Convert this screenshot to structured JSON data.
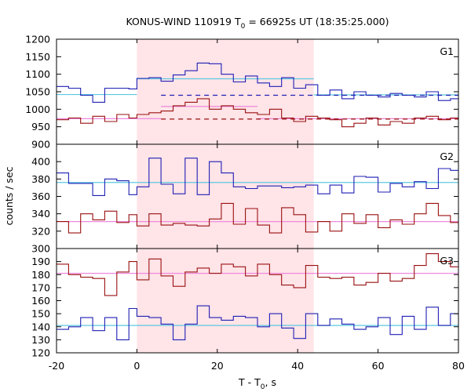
{
  "chart_data": {
    "type": "line",
    "title_main": "KONUS-WIND 110919 T",
    "title_sub": "0",
    "title_rest": " = 66925s UT (18:35:25.000)",
    "xlabel_main": "T - T",
    "xlabel_sub": "0",
    "xlabel_rest": ", s",
    "ylabel": "counts / sec",
    "xlim": [
      -20,
      80
    ],
    "x_ticks": [
      -20,
      0,
      20,
      40,
      60,
      80
    ],
    "highlight_interval": [
      0,
      44
    ],
    "colors": {
      "series_blue": "#1f1fb4",
      "series_red": "#9a1010",
      "level_cyan": "#5cc8e0",
      "level_pink": "#ee88dd",
      "highlight": "#ffe4e8"
    },
    "panels": [
      {
        "label": "G1",
        "ylim": [
          900,
          1200
        ],
        "y_ticks": [
          900,
          950,
          1000,
          1050,
          1100,
          1150,
          1200
        ],
        "series": [
          {
            "color_key": "series_blue",
            "edges": [
              -20,
              -17,
              -14,
              -11,
              -8,
              -5,
              -2,
              0,
              3,
              6,
              9,
              12,
              15,
              18,
              21,
              24,
              27,
              30,
              33,
              36,
              39,
              42,
              45,
              48,
              51,
              54,
              57,
              60,
              63,
              66,
              69,
              72,
              75,
              78,
              80
            ],
            "values": [
              1065,
              1060,
              1040,
              1020,
              1060,
              1060,
              1058,
              1088,
              1090,
              1080,
              1098,
              1110,
              1132,
              1130,
              1100,
              1078,
              1095,
              1075,
              1065,
              1090,
              1060,
              1070,
              1040,
              1055,
              1030,
              1050,
              1040,
              1035,
              1045,
              1040,
              1035,
              1050,
              1025,
              1030
            ]
          },
          {
            "color_key": "series_red",
            "edges": [
              -20,
              -17,
              -14,
              -11,
              -8,
              -5,
              -2,
              0,
              3,
              6,
              9,
              12,
              15,
              18,
              21,
              24,
              27,
              30,
              33,
              36,
              39,
              42,
              45,
              48,
              51,
              54,
              57,
              60,
              63,
              66,
              69,
              72,
              75,
              78,
              80
            ],
            "values": [
              970,
              975,
              960,
              980,
              965,
              985,
              975,
              985,
              990,
              995,
              1010,
              1020,
              1030,
              1000,
              1010,
              1000,
              990,
              985,
              1000,
              975,
              965,
              980,
              975,
              970,
              950,
              960,
              975,
              955,
              965,
              960,
              975,
              980,
              970,
              975
            ]
          }
        ],
        "levels": [
          {
            "color_key": "level_cyan",
            "from": -20,
            "to": 0,
            "y": 1042,
            "dash": false
          },
          {
            "color_key": "level_cyan",
            "from": 0,
            "to": 44,
            "y": 1087,
            "dash": false
          },
          {
            "color_key": "level_cyan",
            "from": 44,
            "to": 80,
            "y": 1041,
            "dash": false
          },
          {
            "color_key": "level_pink",
            "from": -20,
            "to": 6,
            "y": 973,
            "dash": false
          },
          {
            "color_key": "level_pink",
            "from": 6,
            "to": 30,
            "y": 1008,
            "dash": false
          },
          {
            "color_key": "level_pink",
            "from": 30,
            "to": 80,
            "y": 973,
            "dash": false
          }
        ],
        "dashed_levels": [
          {
            "color_key": "series_blue",
            "from": 6,
            "to": 80,
            "y": 1040
          },
          {
            "color_key": "series_red",
            "from": 6,
            "to": 80,
            "y": 972
          }
        ]
      },
      {
        "label": "G2",
        "ylim": [
          300,
          420
        ],
        "y_ticks": [
          300,
          320,
          340,
          360,
          380,
          400
        ],
        "series": [
          {
            "color_key": "series_blue",
            "edges": [
              -20,
              -17,
              -14,
              -11,
              -8,
              -5,
              -2,
              0,
              3,
              6,
              9,
              12,
              15,
              18,
              21,
              24,
              27,
              30,
              33,
              36,
              39,
              42,
              45,
              48,
              51,
              54,
              57,
              60,
              63,
              66,
              69,
              72,
              75,
              78,
              80
            ],
            "values": [
              387,
              375,
              375,
              361,
              380,
              378,
              362,
              371,
              404,
              374,
              363,
              404,
              362,
              400,
              387,
              371,
              369,
              372,
              372,
              370,
              371,
              373,
              363,
              373,
              364,
              383,
              382,
              365,
              375,
              371,
              377,
              369,
              392,
              390
            ]
          },
          {
            "color_key": "series_red",
            "edges": [
              -20,
              -17,
              -14,
              -11,
              -8,
              -5,
              -2,
              0,
              3,
              6,
              9,
              12,
              15,
              18,
              21,
              24,
              27,
              30,
              33,
              36,
              39,
              42,
              45,
              48,
              51,
              54,
              57,
              60,
              63,
              66,
              69,
              72,
              75,
              78,
              80
            ],
            "values": [
              331,
              318,
              340,
              333,
              343,
              330,
              339,
              326,
              340,
              327,
              329,
              327,
              326,
              334,
              352,
              328,
              346,
              327,
              318,
              347,
              339,
              319,
              331,
              320,
              340,
              329,
              339,
              324,
              333,
              328,
              340,
              352,
              338,
              330
            ]
          }
        ],
        "levels": [
          {
            "color_key": "level_cyan",
            "from": -20,
            "to": 80,
            "y": 376,
            "dash": false
          },
          {
            "color_key": "level_pink",
            "from": -20,
            "to": 80,
            "y": 331,
            "dash": false
          }
        ],
        "dashed_levels": []
      },
      {
        "label": "G3",
        "ylim": [
          120,
          200
        ],
        "y_ticks": [
          120,
          130,
          140,
          150,
          160,
          170,
          180,
          190
        ],
        "series": [
          {
            "color_key": "series_red",
            "edges": [
              -20,
              -17,
              -14,
              -11,
              -8,
              -5,
              -2,
              0,
              3,
              6,
              9,
              12,
              15,
              18,
              21,
              24,
              27,
              30,
              33,
              36,
              39,
              42,
              45,
              48,
              51,
              54,
              57,
              60,
              63,
              66,
              69,
              72,
              75,
              78,
              80
            ],
            "values": [
              188,
              180,
              178,
              177,
              164,
              182,
              190,
              176,
              192,
              179,
              171,
              182,
              185,
              181,
              188,
              186,
              179,
              188,
              180,
              172,
              170,
              187,
              178,
              177,
              178,
              172,
              174,
              181,
              175,
              177,
              187,
              196,
              190,
              186
            ]
          },
          {
            "color_key": "series_blue",
            "edges": [
              -20,
              -17,
              -14,
              -11,
              -8,
              -5,
              -2,
              0,
              3,
              6,
              9,
              12,
              15,
              18,
              21,
              24,
              27,
              30,
              33,
              36,
              39,
              42,
              45,
              48,
              51,
              54,
              57,
              60,
              63,
              66,
              69,
              72,
              75,
              78,
              80
            ],
            "values": [
              138,
              140,
              147,
              137,
              147,
              130,
              154,
              148,
              147,
              142,
              130,
              142,
              156,
              147,
              145,
              148,
              147,
              140,
              150,
              139,
              131,
              150,
              141,
              146,
              142,
              138,
              140,
              147,
              134,
              148,
              138,
              155,
              141,
              150
            ]
          }
        ],
        "levels": [
          {
            "color_key": "level_pink",
            "from": -20,
            "to": 80,
            "y": 181,
            "dash": false
          },
          {
            "color_key": "level_cyan",
            "from": -20,
            "to": 80,
            "y": 141,
            "dash": false
          }
        ],
        "dashed_levels": []
      }
    ]
  }
}
